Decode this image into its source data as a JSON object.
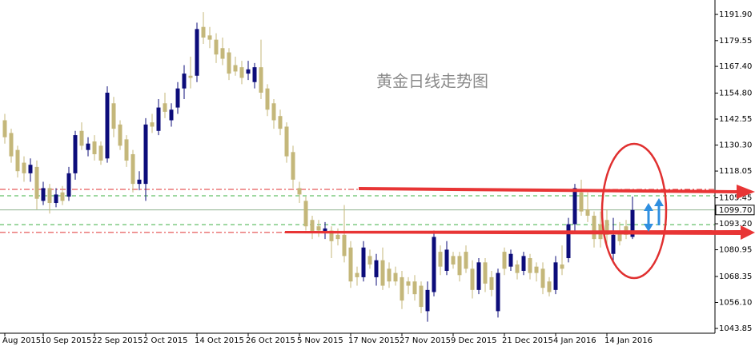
{
  "chart_data": {
    "type": "candlestick",
    "title": "黄金日线走势图",
    "categories": [
      "Aug 2015",
      null,
      null,
      null,
      null,
      null,
      "10 Sep 2015",
      null,
      null,
      null,
      null,
      null,
      null,
      null,
      "22 Sep 2015",
      null,
      null,
      null,
      null,
      null,
      null,
      null,
      "2 Oct 2015",
      null,
      null,
      null,
      null,
      null,
      null,
      null,
      "14 Oct 2015",
      null,
      null,
      null,
      null,
      null,
      null,
      null,
      "26 Oct 2015",
      null,
      null,
      null,
      null,
      null,
      null,
      null,
      "5 Nov 2015",
      null,
      null,
      null,
      null,
      null,
      null,
      null,
      "17 Nov 2015",
      null,
      null,
      null,
      null,
      null,
      null,
      null,
      "27 Nov 2015",
      null,
      null,
      null,
      null,
      null,
      null,
      null,
      "9 Dec 2015",
      null,
      null,
      null,
      null,
      null,
      null,
      null,
      "21 Dec 2015",
      null,
      null,
      null,
      null,
      null,
      null,
      null,
      "4 Jan 2016",
      null,
      null,
      null,
      null,
      null,
      null,
      null,
      "14 Jan 2016",
      null,
      null,
      null,
      null
    ],
    "open": [
      1142,
      1136,
      1128,
      1122,
      1117,
      1120,
      1104,
      1110,
      1103,
      1108,
      1106,
      1117,
      1137,
      1128,
      1132,
      1130,
      1124,
      1150,
      1140,
      1133,
      1126,
      1112,
      1112,
      1141,
      1137,
      1150,
      1142,
      1148,
      1157,
      1163,
      1163,
      1186,
      1182,
      1180,
      1176,
      1174,
      1168,
      1167,
      1164,
      1160,
      1167,
      1157,
      1150,
      1144,
      1139,
      1127,
      1110,
      1104,
      1095,
      1092,
      1089,
      1090,
      1088,
      1088,
      1082,
      1070,
      1068,
      1078,
      1068,
      1076,
      1072,
      1070,
      1068,
      1066,
      1066,
      1064,
      1052,
      1061,
      1080,
      1071,
      1078,
      1078,
      1080,
      1072,
      1062,
      1075,
      1068,
      1052,
      1080,
      1073,
      1074,
      1071,
      1077,
      1073,
      1072,
      1066,
      1062,
      1074,
      1077,
      1093,
      1108,
      1100,
      1097,
      1093,
      1095,
      1079,
      1090,
      1092,
      1087
    ],
    "high": [
      1145,
      1138,
      1130,
      1125,
      1124,
      1123,
      1113,
      1112,
      1110,
      1111,
      1120,
      1137,
      1141,
      1134,
      1135,
      1132,
      1158,
      1153,
      1142,
      1135,
      1128,
      1118,
      1143,
      1145,
      1152,
      1155,
      1150,
      1160,
      1168,
      1172,
      1188,
      1193,
      1186,
      1183,
      1181,
      1176,
      1172,
      1170,
      1170,
      1169,
      1180,
      1159,
      1152,
      1147,
      1141,
      1130,
      1113,
      1106,
      1097,
      1095,
      1094,
      1092,
      1091,
      1102,
      1085,
      1073,
      1085,
      1081,
      1079,
      1082,
      1075,
      1073,
      1071,
      1068,
      1069,
      1066,
      1066,
      1090,
      1083,
      1085,
      1080,
      1080,
      1083,
      1076,
      1077,
      1077,
      1071,
      1072,
      1082,
      1081,
      1076,
      1080,
      1079,
      1075,
      1075,
      1068,
      1078,
      1083,
      1096,
      1112,
      1114,
      1108,
      1099,
      1099,
      1100,
      1096,
      1094,
      1095,
      1106
    ],
    "low": [
      1131,
      1122,
      1115,
      1113,
      1113,
      1100,
      1102,
      1098,
      1101,
      1102,
      1104,
      1114,
      1128,
      1125,
      1123,
      1121,
      1122,
      1134,
      1128,
      1120,
      1108,
      1109,
      1104,
      1136,
      1135,
      1143,
      1139,
      1145,
      1152,
      1157,
      1160,
      1178,
      1176,
      1169,
      1168,
      1161,
      1163,
      1159,
      1161,
      1157,
      1152,
      1144,
      1138,
      1135,
      1122,
      1110,
      1103,
      1090,
      1086,
      1087,
      1086,
      1077,
      1083,
      1075,
      1063,
      1064,
      1066,
      1072,
      1064,
      1062,
      1063,
      1064,
      1053,
      1060,
      1057,
      1051,
      1047,
      1059,
      1069,
      1069,
      1072,
      1066,
      1070,
      1058,
      1060,
      1061,
      1059,
      1049,
      1069,
      1071,
      1067,
      1069,
      1067,
      1066,
      1060,
      1059,
      1060,
      1069,
      1075,
      1090,
      1097,
      1094,
      1082,
      1082,
      1083,
      1076,
      1083,
      1086,
      1086
    ],
    "close": [
      1134,
      1125,
      1118,
      1117,
      1121,
      1105,
      1110,
      1103,
      1107,
      1104,
      1117,
      1135,
      1130,
      1131,
      1126,
      1123,
      1155,
      1138,
      1130,
      1123,
      1112,
      1114,
      1140,
      1139,
      1148,
      1146,
      1147,
      1157,
      1164,
      1162,
      1185,
      1181,
      1180,
      1173,
      1171,
      1164,
      1165,
      1162,
      1166,
      1167,
      1155,
      1147,
      1142,
      1138,
      1125,
      1114,
      1107,
      1092,
      1089,
      1090,
      1091,
      1085,
      1086,
      1078,
      1066,
      1068,
      1082,
      1074,
      1076,
      1064,
      1066,
      1066,
      1057,
      1064,
      1060,
      1054,
      1062,
      1087,
      1073,
      1081,
      1074,
      1069,
      1072,
      1062,
      1075,
      1065,
      1062,
      1070,
      1072,
      1079,
      1070,
      1078,
      1070,
      1070,
      1063,
      1061,
      1075,
      1072,
      1093,
      1110,
      1099,
      1097,
      1086,
      1086,
      1088,
      1088,
      1085,
      1088,
      1099.7
    ],
    "up_color": "#0c0c7a",
    "down_color": "#c4b77a",
    "ylim": [
      1041.6,
      1198.7
    ],
    "yticks": [
      {
        "value": 1191.9,
        "label": "1191.90"
      },
      1179.55,
      {
        "value": 1167.4,
        "label": "1167.40"
      },
      {
        "value": 1154.8,
        "label": "1154.80"
      },
      1142.55,
      {
        "value": 1130.3,
        "label": "1130.30"
      },
      1118.05,
      1105.45,
      {
        "value": 1093.2,
        "label": "1093.20"
      },
      1080.95,
      1068.35,
      {
        "value": 1056.1,
        "label": "1056.10"
      },
      1043.85
    ],
    "last_price": {
      "value": 1099.7,
      "label": "1099.70"
    },
    "levels": [
      {
        "value": 1109.4,
        "color": "#e03030",
        "style": "dashdot"
      },
      {
        "value": 1106.4,
        "color": "#3cb043",
        "style": "dashed"
      },
      {
        "value": 1092.8,
        "color": "#3cb043",
        "style": "dashed"
      },
      {
        "value": 1089.1,
        "color": "#e03030",
        "style": "dashdot"
      }
    ]
  }
}
